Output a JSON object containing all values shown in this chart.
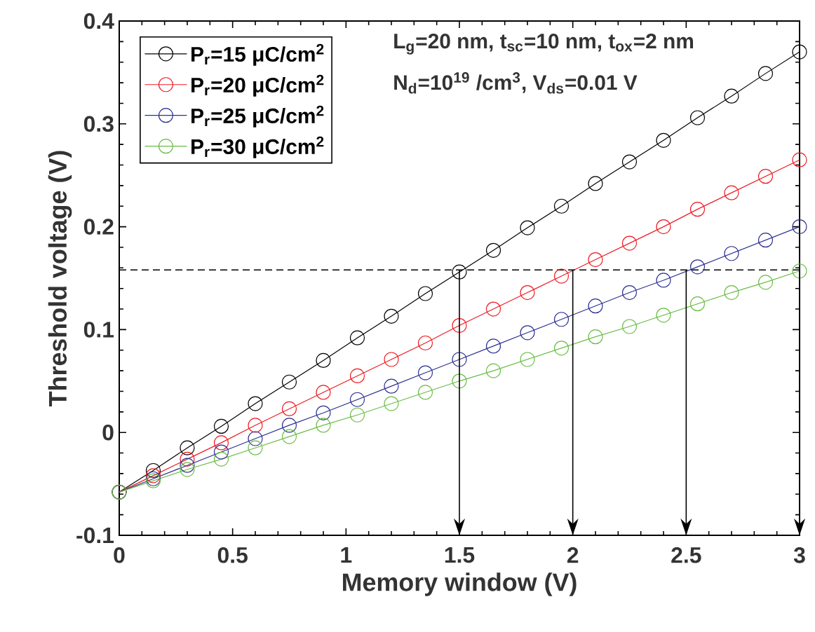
{
  "chart_data": {
    "type": "line",
    "xlabel": "Memory window (V)",
    "ylabel": "Threshold voltage (V)",
    "x": [
      0,
      0.15,
      0.3,
      0.45,
      0.6,
      0.75,
      0.9,
      1.05,
      1.2,
      1.35,
      1.5,
      1.65,
      1.8,
      1.95,
      2.1,
      2.25,
      2.4,
      2.55,
      2.7,
      2.85,
      3.0
    ],
    "series": [
      {
        "name": "P$_{r}$=15 μC/cm$^{2}$",
        "color": "#000000",
        "values": [
          -0.058,
          -0.037,
          -0.015,
          0.006,
          0.028,
          0.049,
          0.07,
          0.092,
          0.113,
          0.135,
          0.156,
          0.177,
          0.199,
          0.22,
          0.242,
          0.263,
          0.284,
          0.306,
          0.327,
          0.349,
          0.37
        ]
      },
      {
        "name": "P$_{r}$=20 μC/cm$^{2}$",
        "color": "#ed1c24",
        "values": [
          -0.058,
          -0.042,
          -0.026,
          -0.01,
          0.007,
          0.023,
          0.039,
          0.055,
          0.071,
          0.087,
          0.104,
          0.12,
          0.136,
          0.152,
          0.168,
          0.184,
          0.2,
          0.217,
          0.233,
          0.249,
          0.265
        ]
      },
      {
        "name": "P$_{r}$=25 μC/cm$^{2}$",
        "color": "#2e3192",
        "values": [
          -0.058,
          -0.045,
          -0.032,
          -0.019,
          -0.006,
          0.007,
          0.019,
          0.032,
          0.045,
          0.058,
          0.071,
          0.084,
          0.097,
          0.11,
          0.123,
          0.136,
          0.148,
          0.161,
          0.174,
          0.187,
          0.2
        ]
      },
      {
        "name": "P$_{r}$=30 μC/cm$^{2}$",
        "color": "#6abd45",
        "values": [
          -0.058,
          -0.047,
          -0.036,
          -0.026,
          -0.015,
          -0.004,
          0.007,
          0.017,
          0.028,
          0.039,
          0.05,
          0.06,
          0.071,
          0.082,
          0.093,
          0.103,
          0.114,
          0.125,
          0.136,
          0.146,
          0.157
        ]
      }
    ],
    "annotations": [
      "L$_{g}$=20 nm, t$_{sc}$=10 nm, t$_{ox}$=2 nm",
      "N$_{d}$=10$^{19}$ /cm$^{3}$, V$_{ds}$=0.01 V"
    ],
    "ref_lines": [
      {
        "axis": "y",
        "value": 0.158,
        "line_style": "dashed"
      },
      {
        "axis": "x",
        "value": 1.5,
        "line_style": "solid"
      },
      {
        "axis": "x",
        "value": 2,
        "line_style": "solid"
      },
      {
        "axis": "x",
        "value": 2.5,
        "line_style": "solid"
      },
      {
        "axis": "x",
        "value": 3,
        "line_style": "solid"
      }
    ],
    "xlim": [
      0,
      3
    ],
    "ylim": [
      -0.1,
      0.4
    ],
    "xticks": [
      0,
      0.5,
      1,
      1.5,
      2,
      2.5,
      3
    ],
    "yticks": [
      -0.1,
      0,
      0.1,
      0.2,
      0.3,
      0.4
    ],
    "grid": false,
    "legend": "top left",
    "marker": "circle",
    "line_style": "solid"
  }
}
